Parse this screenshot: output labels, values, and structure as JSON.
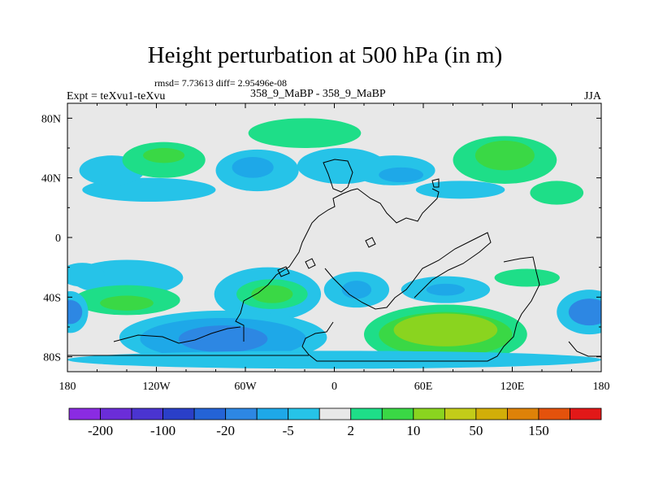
{
  "header": {
    "title": "Height perturbation at 500 hPa (in m)",
    "stats": "rmsd= 7.73613 diff= 2.95496e-08",
    "left_label": "Expt = teXvu1-teXvu",
    "center_label": "358_9_MaBP - 358_9_MaBP",
    "right_label": "JJA"
  },
  "chart_data": {
    "type": "heatmap",
    "title": "Height perturbation at 500 hPa (in m)",
    "units": "m",
    "x_axis": {
      "range": [
        -180,
        180
      ],
      "ticks": [
        -180,
        -120,
        -60,
        0,
        60,
        120,
        180
      ],
      "tick_labels": [
        "180",
        "120W",
        "60W",
        "0",
        "60E",
        "120E",
        "180"
      ]
    },
    "y_axis": {
      "range": [
        -90,
        90
      ],
      "ticks": [
        80,
        40,
        0,
        -40,
        -80
      ],
      "tick_labels": [
        "80N",
        "40N",
        "0",
        "40S",
        "80S"
      ]
    },
    "colorbar": {
      "labels": [
        "-200",
        "-100",
        "-20",
        "-5",
        "2",
        "10",
        "50",
        "150"
      ],
      "colors": [
        "#8a2be2",
        "#6b2dd8",
        "#4a34d0",
        "#2a3fc8",
        "#2463d6",
        "#2d87e3",
        "#1ea8e8",
        "#26c3e8",
        "#e8e8e8",
        "#1ede88",
        "#3ad845",
        "#8ad41f",
        "#c2cc19",
        "#d2ae08",
        "#de8208",
        "#e4520c",
        "#e21818"
      ]
    },
    "regions": [
      {
        "name": "nh-belt-west",
        "lon": -125,
        "lat": 32,
        "rx": 45,
        "ry": 8,
        "level": 7
      },
      {
        "name": "pacific-north",
        "lon": -150,
        "lat": 45,
        "rx": 22,
        "ry": 10,
        "level": 7
      },
      {
        "name": "n-america-high",
        "lon": -115,
        "lat": 52,
        "rx": 28,
        "ry": 12,
        "level": 9
      },
      {
        "name": "n-america-high-core",
        "lon": -115,
        "lat": 55,
        "rx": 14,
        "ry": 5,
        "level": 10
      },
      {
        "name": "n-atlantic-low",
        "lon": -52,
        "lat": 45,
        "rx": 28,
        "ry": 14,
        "level": 7
      },
      {
        "name": "n-atlantic-low-core",
        "lon": -55,
        "lat": 47,
        "rx": 14,
        "ry": 7,
        "level": 6
      },
      {
        "name": "arctic-atlantic-high",
        "lon": -20,
        "lat": 70,
        "rx": 38,
        "ry": 10,
        "level": 9
      },
      {
        "name": "europe-low",
        "lon": 5,
        "lat": 48,
        "rx": 30,
        "ry": 12,
        "level": 7
      },
      {
        "name": "asia-low",
        "lon": 40,
        "lat": 45,
        "rx": 28,
        "ry": 10,
        "level": 7
      },
      {
        "name": "asia-low-core",
        "lon": 45,
        "lat": 42,
        "rx": 15,
        "ry": 5,
        "level": 6
      },
      {
        "name": "nh-belt-east",
        "lon": 85,
        "lat": 32,
        "rx": 30,
        "ry": 6,
        "level": 7
      },
      {
        "name": "siberia-high",
        "lon": 115,
        "lat": 52,
        "rx": 35,
        "ry": 16,
        "level": 9
      },
      {
        "name": "siberia-high-core",
        "lon": 115,
        "lat": 55,
        "rx": 20,
        "ry": 10,
        "level": 10
      },
      {
        "name": "nw-pacific-high",
        "lon": 150,
        "lat": 30,
        "rx": 18,
        "ry": 8,
        "level": 9
      },
      {
        "name": "pacific-south-low",
        "lon": -140,
        "lat": -27,
        "rx": 38,
        "ry": 12,
        "level": 7
      },
      {
        "name": "sh-belt-west",
        "lon": -170,
        "lat": -25,
        "rx": 15,
        "ry": 8,
        "level": 7
      },
      {
        "name": "sh-belt-high",
        "lon": -140,
        "lat": -42,
        "rx": 36,
        "ry": 10,
        "level": 9
      },
      {
        "name": "sh-belt-high-core",
        "lon": -140,
        "lat": -44,
        "rx": 18,
        "ry": 5,
        "level": 10
      },
      {
        "name": "south-atlantic-ring",
        "lon": -45,
        "lat": -38,
        "rx": 36,
        "ry": 18,
        "level": 7
      },
      {
        "name": "south-atlantic-high",
        "lon": -42,
        "lat": -38,
        "rx": 24,
        "ry": 10,
        "level": 9
      },
      {
        "name": "south-atlantic-core",
        "lon": -42,
        "lat": -38,
        "rx": 14,
        "ry": 6,
        "level": 10
      },
      {
        "name": "antarctic-low",
        "lon": -75,
        "lat": -67,
        "rx": 70,
        "ry": 18,
        "level": 7
      },
      {
        "name": "antarctic-low-mid",
        "lon": -75,
        "lat": -68,
        "rx": 56,
        "ry": 14,
        "level": 6
      },
      {
        "name": "antarctic-low-core",
        "lon": -75,
        "lat": -68,
        "rx": 30,
        "ry": 9,
        "level": 5
      },
      {
        "name": "s-africa-low",
        "lon": 15,
        "lat": -35,
        "rx": 22,
        "ry": 12,
        "level": 7
      },
      {
        "name": "s-africa-low-core",
        "lon": 15,
        "lat": -35,
        "rx": 10,
        "ry": 6,
        "level": 6
      },
      {
        "name": "indian-low",
        "lon": 75,
        "lat": -35,
        "rx": 30,
        "ry": 9,
        "level": 7
      },
      {
        "name": "indian-low-core",
        "lon": 75,
        "lat": -35,
        "rx": 13,
        "ry": 4,
        "level": 6
      },
      {
        "name": "southern-ocean-high",
        "lon": 75,
        "lat": -65,
        "rx": 55,
        "ry": 20,
        "level": 9
      },
      {
        "name": "southern-ocean-high-mid",
        "lon": 75,
        "lat": -65,
        "rx": 45,
        "ry": 15,
        "level": 10
      },
      {
        "name": "southern-ocean-high-core",
        "lon": 75,
        "lat": -62,
        "rx": 35,
        "ry": 11,
        "level": 11
      },
      {
        "name": "s-pacific-low-east",
        "lon": 172,
        "lat": -50,
        "rx": 22,
        "ry": 15,
        "level": 7
      },
      {
        "name": "s-pacific-low-east-core",
        "lon": 172,
        "lat": -50,
        "rx": 14,
        "ry": 9,
        "level": 5
      },
      {
        "name": "s-pacific-low-west",
        "lon": -178,
        "lat": -50,
        "rx": 12,
        "ry": 14,
        "level": 7
      },
      {
        "name": "s-pacific-low-west-core",
        "lon": -178,
        "lat": -50,
        "rx": 8,
        "ry": 8,
        "level": 5
      },
      {
        "name": "sh-belt-east",
        "lon": 130,
        "lat": -27,
        "rx": 22,
        "ry": 6,
        "level": 9
      },
      {
        "name": "polar-band",
        "lon": 0,
        "lat": -82,
        "rx": 180,
        "ry": 6,
        "level": 7
      }
    ]
  }
}
